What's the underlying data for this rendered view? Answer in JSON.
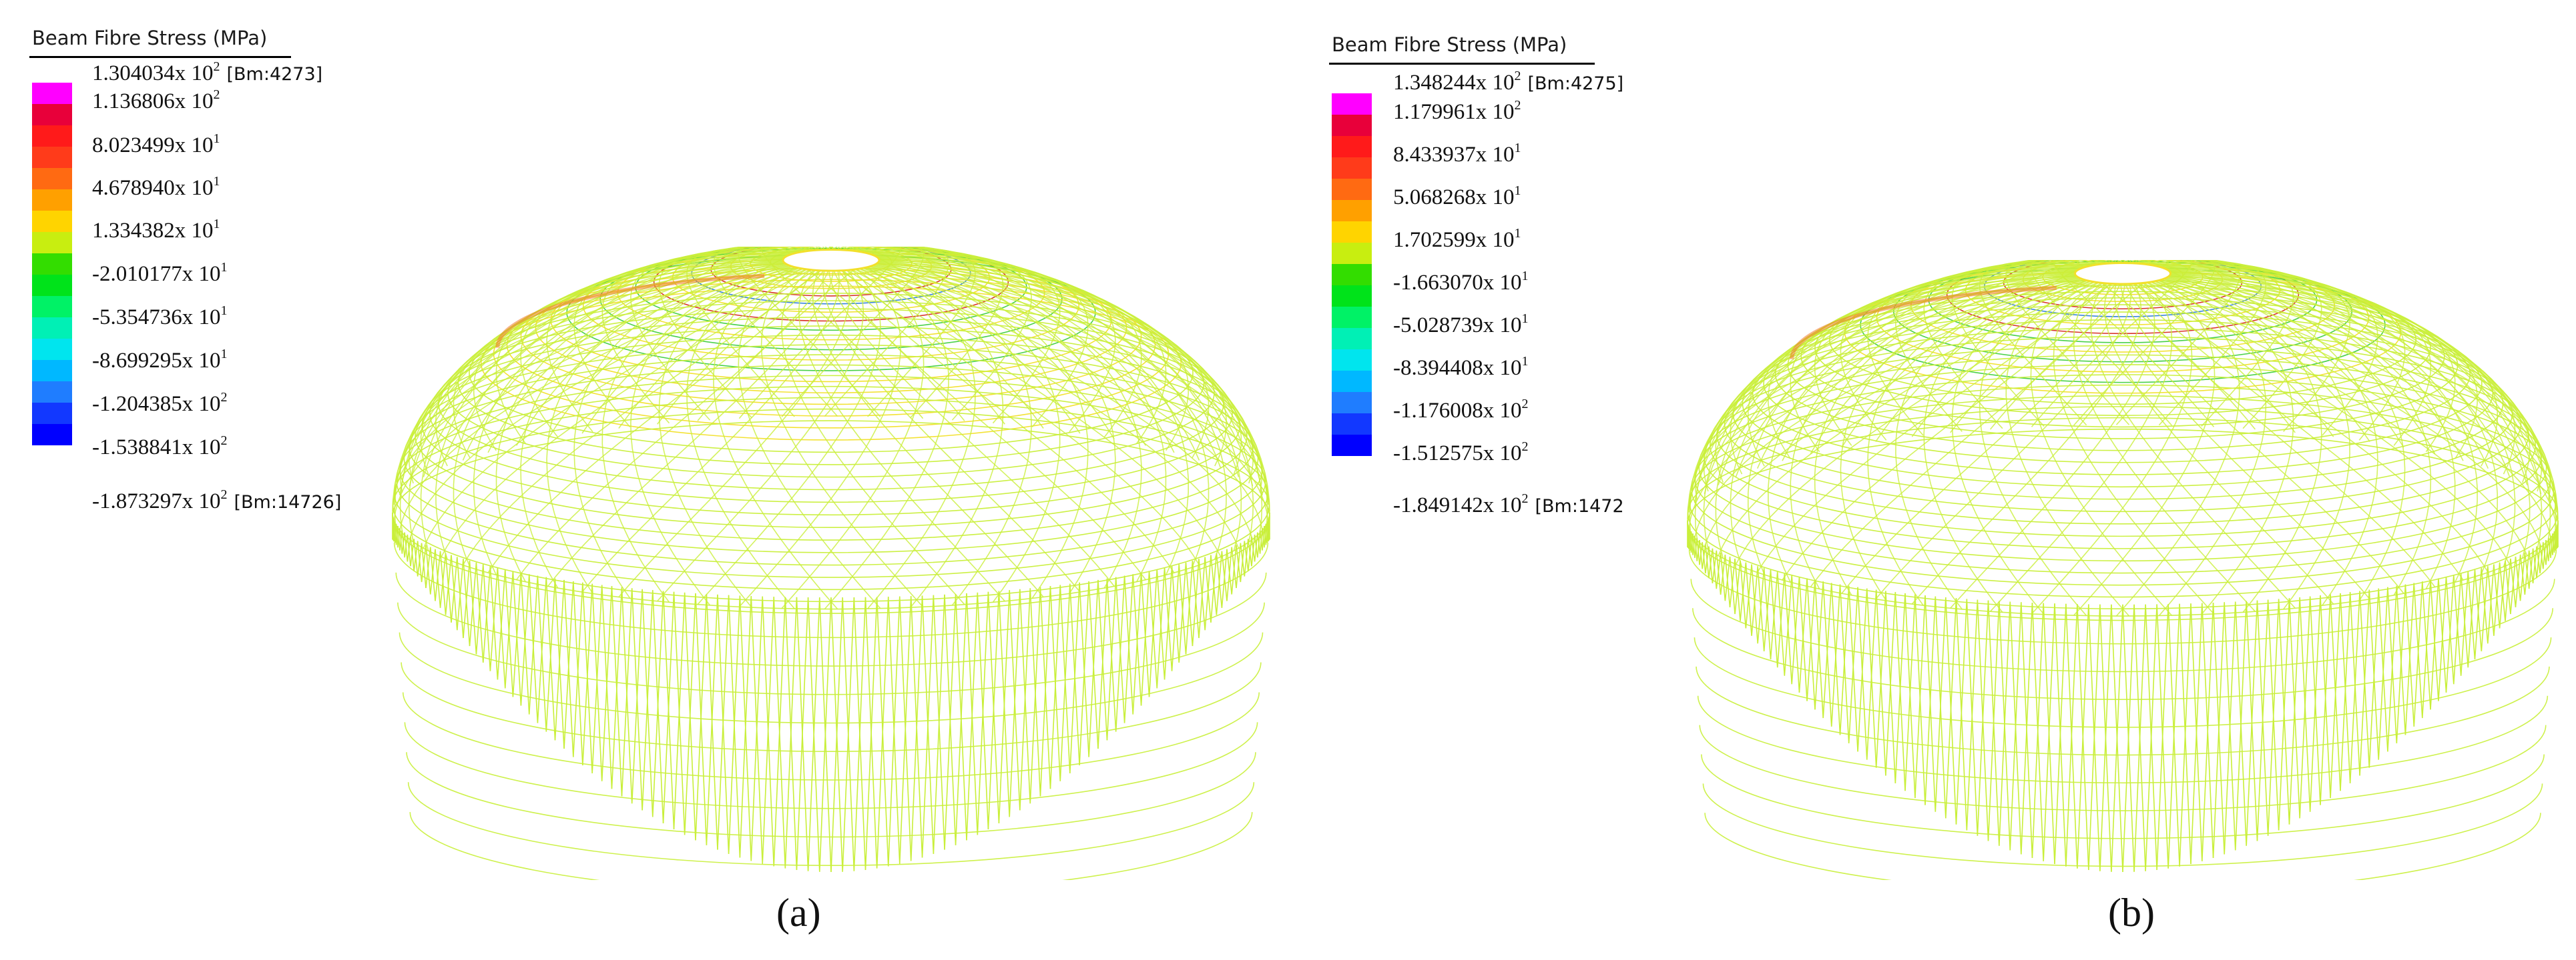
{
  "colors": {
    "legend_bands": [
      "#ff00ff",
      "#e8003a",
      "#ff1a1a",
      "#ff3b1a",
      "#ff6a12",
      "#ffa000",
      "#ffd400",
      "#c8ee10",
      "#33dd00",
      "#00e31a",
      "#00f266",
      "#00f0b5",
      "#00e5ee",
      "#00b8ff",
      "#1f7dff",
      "#1238ff",
      "#0000ff"
    ],
    "mesh_main": "#c9ef3a",
    "mesh_warm": "#f2e02a",
    "mesh_hot": "#ef7a2a",
    "mesh_ring_red": "#d62a1c",
    "mesh_ring_green": "#3fcf3f",
    "mesh_ring_blue": "#2f7fd8"
  },
  "panels": [
    {
      "caption": "(a)",
      "legend": {
        "title": "Beam Fibre Stress  (MPa)",
        "labels": [
          {
            "mantissa": "1.304034",
            "exp": "2",
            "note": "[Bm:4273]"
          },
          {
            "mantissa": "1.136806",
            "exp": "2",
            "note": ""
          },
          {
            "mantissa": "8.023499",
            "exp": "1",
            "note": ""
          },
          {
            "mantissa": "4.678940",
            "exp": "1",
            "note": ""
          },
          {
            "mantissa": "1.334382",
            "exp": "1",
            "note": ""
          },
          {
            "mantissa": "-2.010177",
            "exp": "1",
            "note": ""
          },
          {
            "mantissa": "-5.354736",
            "exp": "1",
            "note": ""
          },
          {
            "mantissa": "-8.699295",
            "exp": "1",
            "note": ""
          },
          {
            "mantissa": "-1.204385",
            "exp": "2",
            "note": ""
          },
          {
            "mantissa": "-1.538841",
            "exp": "2",
            "note": ""
          },
          {
            "mantissa": "-1.873297",
            "exp": "2",
            "note": "[Bm:14726]"
          }
        ]
      }
    },
    {
      "caption": "(b)",
      "legend": {
        "title": "Beam Fibre Stress  (MPa)",
        "labels": [
          {
            "mantissa": "1.348244",
            "exp": "2",
            "note": "[Bm:4275]"
          },
          {
            "mantissa": "1.179961",
            "exp": "2",
            "note": ""
          },
          {
            "mantissa": "8.433937",
            "exp": "1",
            "note": ""
          },
          {
            "mantissa": "5.068268",
            "exp": "1",
            "note": ""
          },
          {
            "mantissa": "1.702599",
            "exp": "1",
            "note": ""
          },
          {
            "mantissa": "-1.663070",
            "exp": "1",
            "note": ""
          },
          {
            "mantissa": "-5.028739",
            "exp": "1",
            "note": ""
          },
          {
            "mantissa": "-8.394408",
            "exp": "1",
            "note": ""
          },
          {
            "mantissa": "-1.176008",
            "exp": "2",
            "note": ""
          },
          {
            "mantissa": "-1.512575",
            "exp": "2",
            "note": ""
          },
          {
            "mantissa": "-1.849142",
            "exp": "2",
            "note": "[Bm:1472"
          }
        ]
      }
    }
  ]
}
